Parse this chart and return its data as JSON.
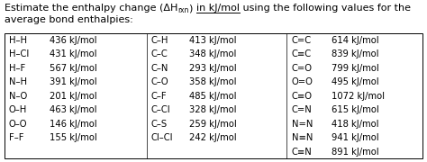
{
  "title_part1": "Estimate the enthalpy change (ΔH",
  "title_sub": "rxn",
  "title_part2": ") ",
  "title_underlined": "in kJ/mol",
  "title_part3": " using the following values for the",
  "title_line2": "average bond enthalpies:",
  "col1": [
    [
      "H–H",
      "436 kJ/mol"
    ],
    [
      "H–Cl",
      "431 kJ/mol"
    ],
    [
      "H–F",
      "567 kJ/mol"
    ],
    [
      "N–H",
      "391 kJ/mol"
    ],
    [
      "N–O",
      "201 kJ/mol"
    ],
    [
      "O–H",
      "463 kJ/mol"
    ],
    [
      "O–O",
      "146 kJ/mol"
    ],
    [
      "F–F",
      "155 kJ/mol"
    ]
  ],
  "col2": [
    [
      "C–H",
      "413 kJ/mol"
    ],
    [
      "C–C",
      "348 kJ/mol"
    ],
    [
      "C–N",
      "293 kJ/mol"
    ],
    [
      "C–O",
      "358 kJ/mol"
    ],
    [
      "C–F",
      "485 kJ/mol"
    ],
    [
      "C–Cl",
      "328 kJ/mol"
    ],
    [
      "C–S",
      "259 kJ/mol"
    ],
    [
      "Cl–Cl",
      "242 kJ/mol"
    ]
  ],
  "col3": [
    [
      "C=C",
      "614 kJ/mol"
    ],
    [
      "C≡C",
      "839 kJ/mol"
    ],
    [
      "C=O",
      "799 kJ/mol"
    ],
    [
      "O=O",
      "495 kJ/mol"
    ],
    [
      "C≡O",
      "1072 kJ/mol"
    ],
    [
      "C=N",
      "615 kJ/mol"
    ],
    [
      "N=N",
      "418 kJ/mol"
    ],
    [
      "N≡N",
      "941 kJ/mol"
    ],
    [
      "C≡N",
      "891 kJ/mol"
    ]
  ],
  "bg_color": "#ffffff",
  "text_color": "#000000",
  "title_fontsize": 8.0,
  "sub_fontsize": 5.5,
  "table_fontsize": 7.2
}
